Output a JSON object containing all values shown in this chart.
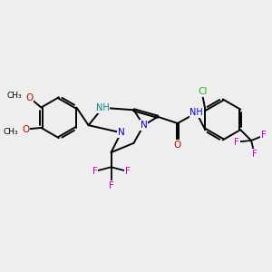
{
  "background_color": "#eeeeee",
  "bond_color": "#000000",
  "colors": {
    "N": "#0000cc",
    "O": "#cc0000",
    "F": "#cc00cc",
    "Cl": "#33aa33",
    "bond": "#000000",
    "NH_teal": "#008080",
    "NH_blue": "#0000cc"
  },
  "figsize": [
    3.0,
    3.0
  ],
  "dpi": 100
}
